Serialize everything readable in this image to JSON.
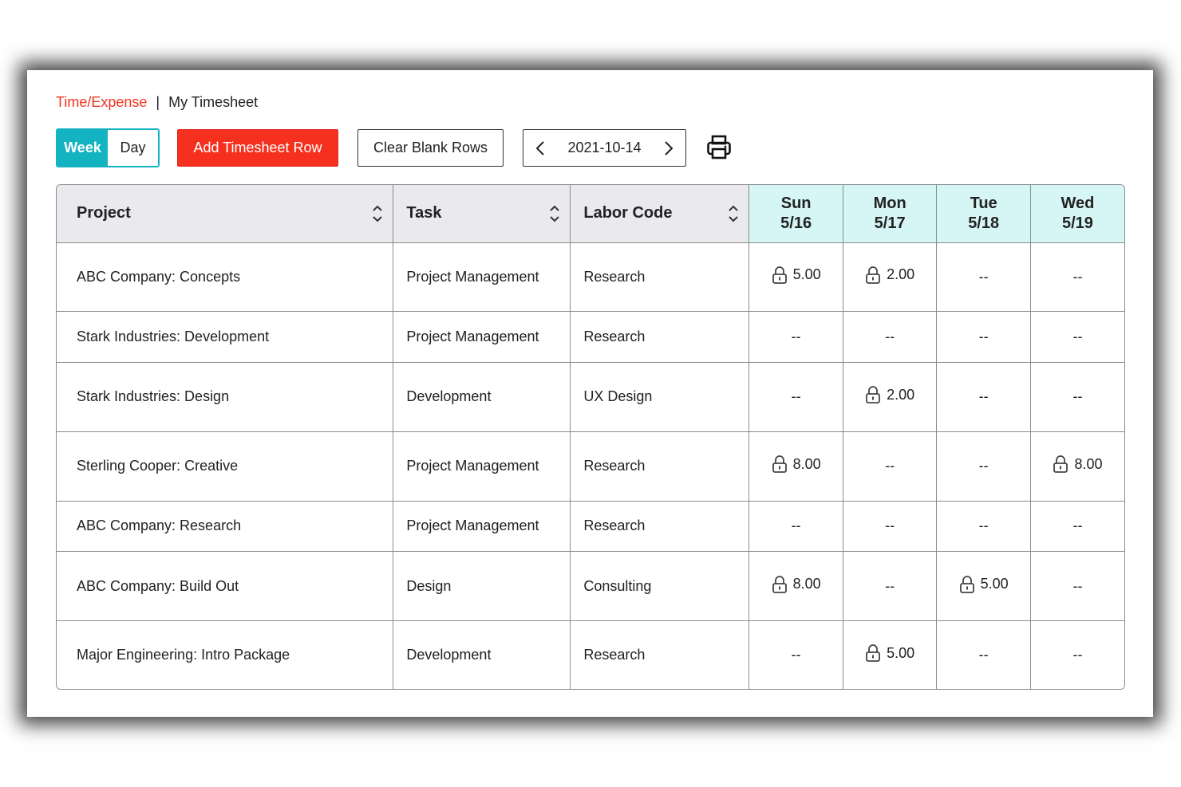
{
  "breadcrumb": {
    "link": "Time/Expense",
    "separator": "|",
    "current": "My Timesheet"
  },
  "view_toggle": {
    "week": "Week",
    "day": "Day",
    "selected": "Week"
  },
  "toolbar": {
    "add_row_label": "Add Timesheet Row",
    "clear_blank_label": "Clear Blank Rows",
    "date": "2021-10-14",
    "print_icon": "printer-icon"
  },
  "colors": {
    "accent": "#14b3c1",
    "danger": "#f5301e",
    "day_header": "#d5f6f5",
    "header": "#e9e9ee"
  },
  "table": {
    "columns": {
      "project": "Project",
      "task": "Task",
      "labor_code": "Labor Code"
    },
    "days": [
      {
        "name": "Sun",
        "date": "5/16"
      },
      {
        "name": "Mon",
        "date": "5/17"
      },
      {
        "name": "Tue",
        "date": "5/18"
      },
      {
        "name": "Wed",
        "date": "5/19"
      }
    ],
    "rows": [
      {
        "project": "ABC Company: Concepts",
        "task": "Project Management",
        "labor_code": "Research",
        "hours": [
          "5.00",
          "2.00",
          "--",
          "--"
        ],
        "locked": [
          true,
          true,
          false,
          false
        ]
      },
      {
        "project": "Stark Industries: Development",
        "task": "Project Management",
        "labor_code": "Research",
        "hours": [
          "--",
          "--",
          "--",
          "--"
        ],
        "locked": [
          false,
          false,
          false,
          false
        ]
      },
      {
        "project": "Stark Industries: Design",
        "task": "Development",
        "labor_code": "UX Design",
        "hours": [
          "--",
          "2.00",
          "--",
          "--"
        ],
        "locked": [
          false,
          true,
          false,
          false
        ]
      },
      {
        "project": "Sterling Cooper: Creative",
        "task": "Project Management",
        "labor_code": "Research",
        "hours": [
          "8.00",
          "--",
          "--",
          "8.00"
        ],
        "locked": [
          true,
          false,
          false,
          true
        ]
      },
      {
        "project": "ABC Company: Research",
        "task": "Project Management",
        "labor_code": "Research",
        "hours": [
          "--",
          "--",
          "--",
          "--"
        ],
        "locked": [
          false,
          false,
          false,
          false
        ]
      },
      {
        "project": "ABC Company: Build Out",
        "task": "Design",
        "labor_code": "Consulting",
        "hours": [
          "8.00",
          "--",
          "5.00",
          "--"
        ],
        "locked": [
          true,
          false,
          true,
          false
        ]
      },
      {
        "project": "Major Engineering: Intro Package",
        "task": "Development",
        "labor_code": "Research",
        "hours": [
          "--",
          "5.00",
          "--",
          "--"
        ],
        "locked": [
          false,
          true,
          false,
          false
        ]
      }
    ]
  }
}
